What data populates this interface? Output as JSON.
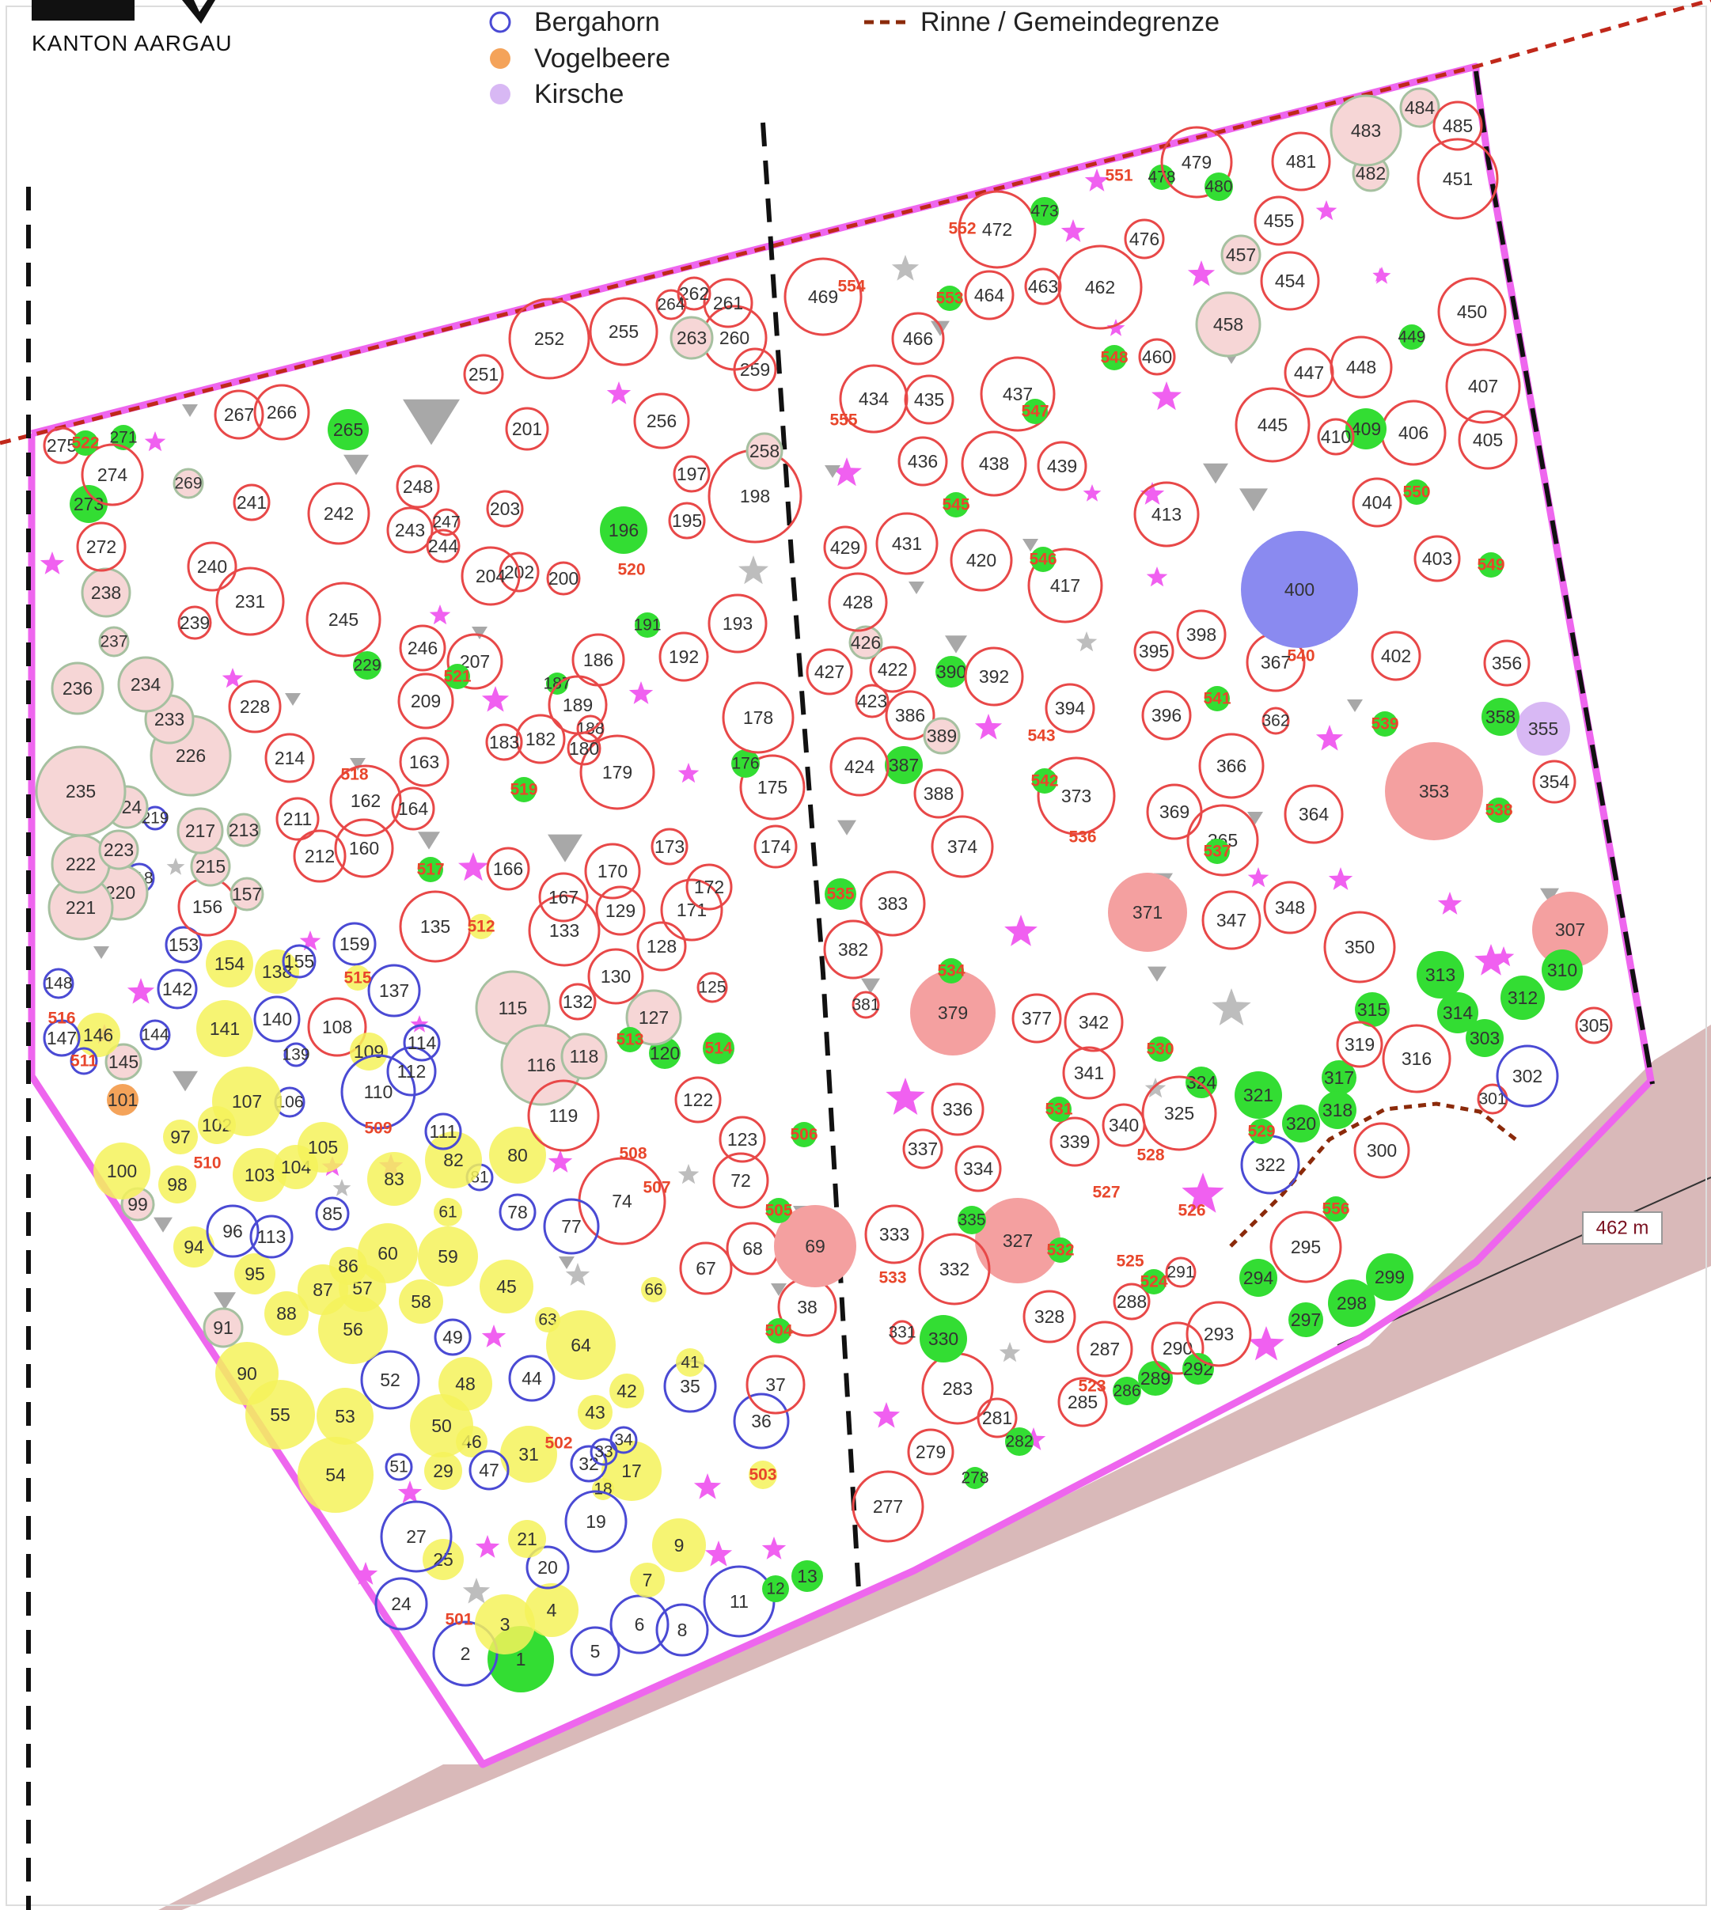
{
  "header": {
    "canton_name": "KANTON AARGAU"
  },
  "legend": {
    "items": [
      {
        "label": "Bergahorn",
        "symbol": "circle-outline",
        "color": "#4a4ad4"
      },
      {
        "label": "Vogelbeere",
        "symbol": "filled-circle",
        "color": "#f4a35a"
      },
      {
        "label": "Kirsche",
        "symbol": "filled-circle",
        "color": "#d8b8f4"
      }
    ],
    "line_items": [
      {
        "label": "Rinne / Gemeindegrenze",
        "symbol": "dashed-line",
        "color": "#8b2a0a"
      }
    ]
  },
  "map": {
    "elevation_label": "462 m",
    "colors": {
      "default_tree_outline": "#e84848",
      "bergahorn_outline": "#4a4ad4",
      "filled_green": "#33dd33",
      "filled_yellow": "#f4f25a",
      "filled_pink": "#f4a0a0",
      "filled_blue": "#8a8af0",
      "filled_orange": "#f4a35a",
      "filled_lilac": "#d8b8f4",
      "boundary_magenta": "#ee66ee",
      "road_brown": "#d8b4b4",
      "boundary_red": "#c0281a"
    },
    "trees": [
      "1",
      "2",
      "3",
      "4",
      "5",
      "6",
      "7",
      "8",
      "9",
      "11",
      "12",
      "13",
      "17",
      "18",
      "19",
      "20",
      "21",
      "24",
      "25",
      "27",
      "29",
      "31",
      "32",
      "33",
      "34",
      "35",
      "36",
      "37",
      "38",
      "41",
      "42",
      "43",
      "44",
      "45",
      "46",
      "47",
      "48",
      "49",
      "50",
      "51",
      "52",
      "53",
      "54",
      "55",
      "56",
      "57",
      "58",
      "59",
      "60",
      "61",
      "63",
      "64",
      "66",
      "67",
      "68",
      "69",
      "72",
      "74",
      "77",
      "78",
      "80",
      "81",
      "82",
      "83",
      "85",
      "86",
      "87",
      "88",
      "90",
      "91",
      "94",
      "95",
      "96",
      "97",
      "98",
      "99",
      "100",
      "101",
      "102",
      "103",
      "104",
      "105",
      "106",
      "107",
      "108",
      "109",
      "110",
      "111",
      "112",
      "113",
      "114",
      "115",
      "116",
      "118",
      "119",
      "120",
      "122",
      "123",
      "125",
      "127",
      "128",
      "129",
      "130",
      "132",
      "133",
      "135",
      "137",
      "138",
      "139",
      "140",
      "141",
      "142",
      "144",
      "145",
      "146",
      "147",
      "148",
      "153",
      "154",
      "155",
      "156",
      "157",
      "159",
      "160",
      "162",
      "163",
      "164",
      "166",
      "167",
      "170",
      "171",
      "172",
      "173",
      "174",
      "175",
      "176",
      "178",
      "179",
      "180",
      "182",
      "183",
      "186",
      "187",
      "188",
      "189",
      "191",
      "192",
      "193",
      "195",
      "196",
      "197",
      "198",
      "200",
      "201",
      "202",
      "203",
      "204",
      "207",
      "209",
      "211",
      "212",
      "213",
      "214",
      "215",
      "217",
      "218",
      "219",
      "220",
      "221",
      "222",
      "223",
      "224",
      "226",
      "228",
      "229",
      "231",
      "233",
      "234",
      "235",
      "236",
      "237",
      "238",
      "239",
      "240",
      "241",
      "242",
      "243",
      "244",
      "245",
      "246",
      "247",
      "248",
      "251",
      "252",
      "255",
      "256",
      "258",
      "259",
      "260",
      "261",
      "262",
      "263",
      "264",
      "265",
      "266",
      "267",
      "269",
      "271",
      "272",
      "273",
      "274",
      "275",
      "277",
      "278",
      "279",
      "281",
      "282",
      "283",
      "285",
      "286",
      "287",
      "288",
      "289",
      "290",
      "291",
      "292",
      "293",
      "294",
      "295",
      "297",
      "298",
      "299",
      "300",
      "301",
      "302",
      "303",
      "305",
      "307",
      "310",
      "312",
      "313",
      "314",
      "315",
      "316",
      "317",
      "318",
      "319",
      "320",
      "321",
      "322",
      "324",
      "325",
      "327",
      "328",
      "330",
      "331",
      "332",
      "333",
      "334",
      "335",
      "336",
      "337",
      "339",
      "340",
      "341",
      "342",
      "347",
      "348",
      "350",
      "353",
      "354",
      "355",
      "356",
      "358",
      "362",
      "364",
      "365",
      "366",
      "367",
      "369",
      "371",
      "373",
      "374",
      "377",
      "379",
      "381",
      "382",
      "383",
      "386",
      "387",
      "388",
      "389",
      "390",
      "392",
      "394",
      "395",
      "396",
      "398",
      "400",
      "402",
      "403",
      "404",
      "405",
      "406",
      "407",
      "409",
      "410",
      "413",
      "417",
      "420",
      "422",
      "423",
      "424",
      "426",
      "427",
      "428",
      "429",
      "431",
      "434",
      "435",
      "436",
      "437",
      "438",
      "439",
      "445",
      "447",
      "448",
      "449",
      "450",
      "451",
      "454",
      "455",
      "457",
      "458",
      "460",
      "462",
      "463",
      "464",
      "466",
      "469",
      "472",
      "473",
      "476",
      "478",
      "479",
      "480",
      "481",
      "482",
      "483",
      "484",
      "485",
      "501",
      "502",
      "503",
      "504",
      "505",
      "506",
      "507",
      "508",
      "509",
      "510",
      "511",
      "512",
      "513",
      "514",
      "515",
      "516",
      "517",
      "518",
      "519",
      "520",
      "521",
      "522",
      "523",
      "524",
      "525",
      "526",
      "527",
      "528",
      "529",
      "530",
      "531",
      "532",
      "533",
      "534",
      "535",
      "536",
      "537",
      "538",
      "539",
      "540",
      "541",
      "542",
      "543",
      "545",
      "546",
      "547",
      "548",
      "549",
      "550",
      "551",
      "552",
      "553",
      "554",
      "555",
      "556"
    ]
  }
}
